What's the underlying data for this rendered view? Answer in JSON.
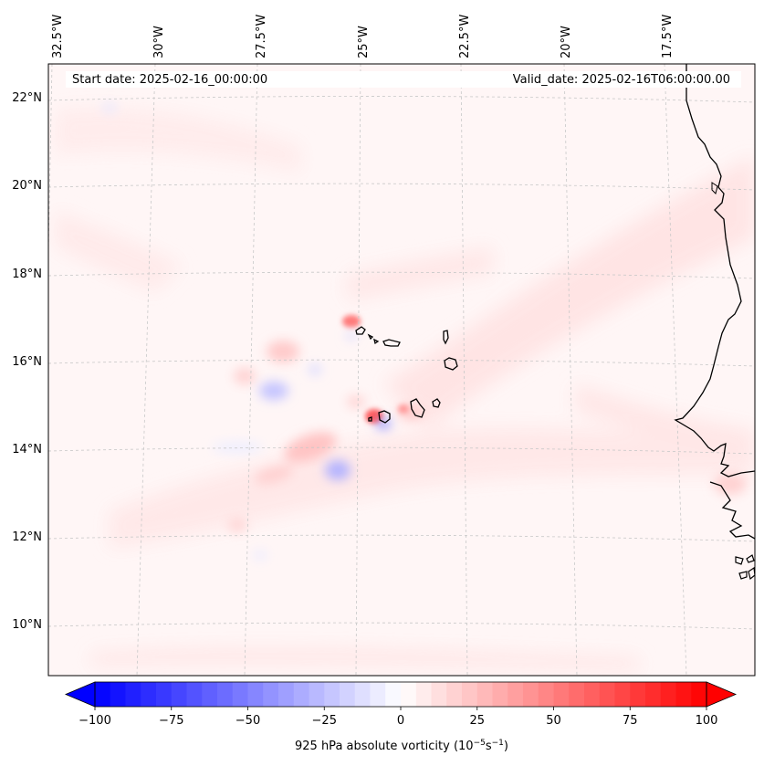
{
  "header": {
    "start_date": "Start date: 2025-02-16_00:00:00",
    "valid_date": "Valid_date: 2025-02-16T06:00:00.00"
  },
  "lon_labels": [
    "32.5°W",
    "30°W",
    "27.5°W",
    "25°W",
    "22.5°W",
    "20°W",
    "17.5°W"
  ],
  "lat_labels": [
    "22°N",
    "20°N",
    "18°N",
    "16°N",
    "14°N",
    "12°N",
    "10°N"
  ],
  "colorbar": {
    "label_prefix": "925 hPa absolute vorticity (10",
    "label_exp1": "−5",
    "label_mid": "s",
    "label_exp2": "−1",
    "label_suffix": ")",
    "ticks": [
      "−100",
      "−75",
      "−50",
      "−25",
      "0",
      "25",
      "50",
      "75",
      "100"
    ],
    "min": -100,
    "max": 100,
    "color_low": "#0000ff",
    "color_mid": "#ffffff",
    "color_high": "#ff0000"
  }
}
